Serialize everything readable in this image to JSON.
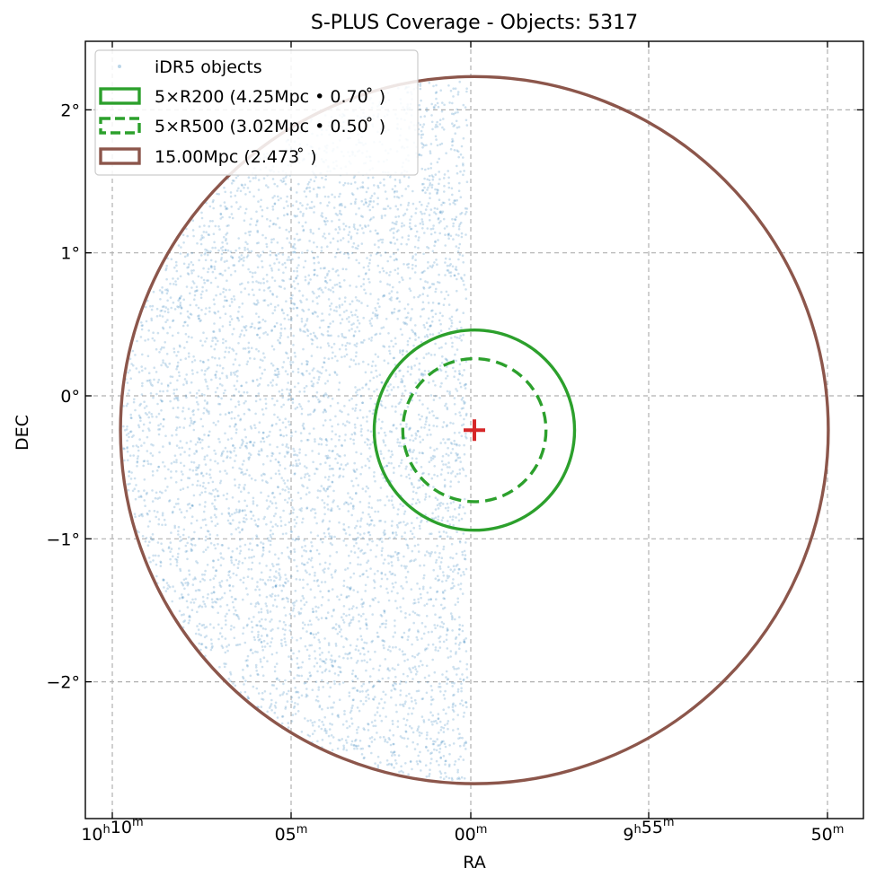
{
  "chart_data": {
    "type": "scatter",
    "title": "S-PLUS Coverage - Objects: 5317",
    "xlabel": "RA",
    "ylabel": "DEC",
    "x_axis": {
      "unit": "RA (hours, decreasing to the right)",
      "ticks": [
        {
          "value": "10h10m",
          "main": "10",
          "sup1": "h",
          "mid": "10",
          "sup2": "m"
        },
        {
          "value": "10h05m",
          "main": "",
          "sup1": "",
          "mid": "05",
          "sup2": "m"
        },
        {
          "value": "10h00m",
          "main": "",
          "sup1": "",
          "mid": "00",
          "sup2": "m"
        },
        {
          "value": "9h55m",
          "main": "9",
          "sup1": "h",
          "mid": "55",
          "sup2": "m"
        },
        {
          "value": "9h50m",
          "main": "",
          "sup1": "",
          "mid": "50",
          "sup2": "m"
        }
      ]
    },
    "y_axis": {
      "unit": "degrees",
      "ylim": [
        -2.95,
        2.5
      ],
      "ticks": [
        {
          "value": 2,
          "label": "2°"
        },
        {
          "value": 1,
          "label": "1°"
        },
        {
          "value": 0,
          "label": "0°"
        },
        {
          "value": -1,
          "label": "−1°"
        },
        {
          "value": -2,
          "label": "−2°"
        }
      ]
    },
    "grid": true,
    "grid_style": "dashed",
    "legend_position": "top-left",
    "center_marker": {
      "ra_offset_deg": 0.0,
      "dec_deg": -0.24,
      "color": "#d62728",
      "marker": "plus"
    },
    "series": [
      {
        "name": "iDR5 objects",
        "kind": "points",
        "color": "#1f77b4",
        "count": 5317,
        "ra_offset_range_deg": [
          -2.47,
          -0.05
        ],
        "dec_range_deg": [
          -2.7,
          2.2
        ]
      },
      {
        "name": "5×R200 (4.25Mpc • 0.70 ̊ )",
        "kind": "circle",
        "radius_deg": 0.7,
        "color": "#2ca02c",
        "linestyle": "solid"
      },
      {
        "name": "5×R500 (3.02Mpc • 0.50 ̊ )",
        "kind": "circle",
        "radius_deg": 0.5,
        "color": "#2ca02c",
        "linestyle": "dashed"
      },
      {
        "name": "15.00Mpc (2.473 ̊ )",
        "kind": "circle",
        "radius_deg": 2.473,
        "color": "#8c564b",
        "linestyle": "solid"
      }
    ]
  }
}
